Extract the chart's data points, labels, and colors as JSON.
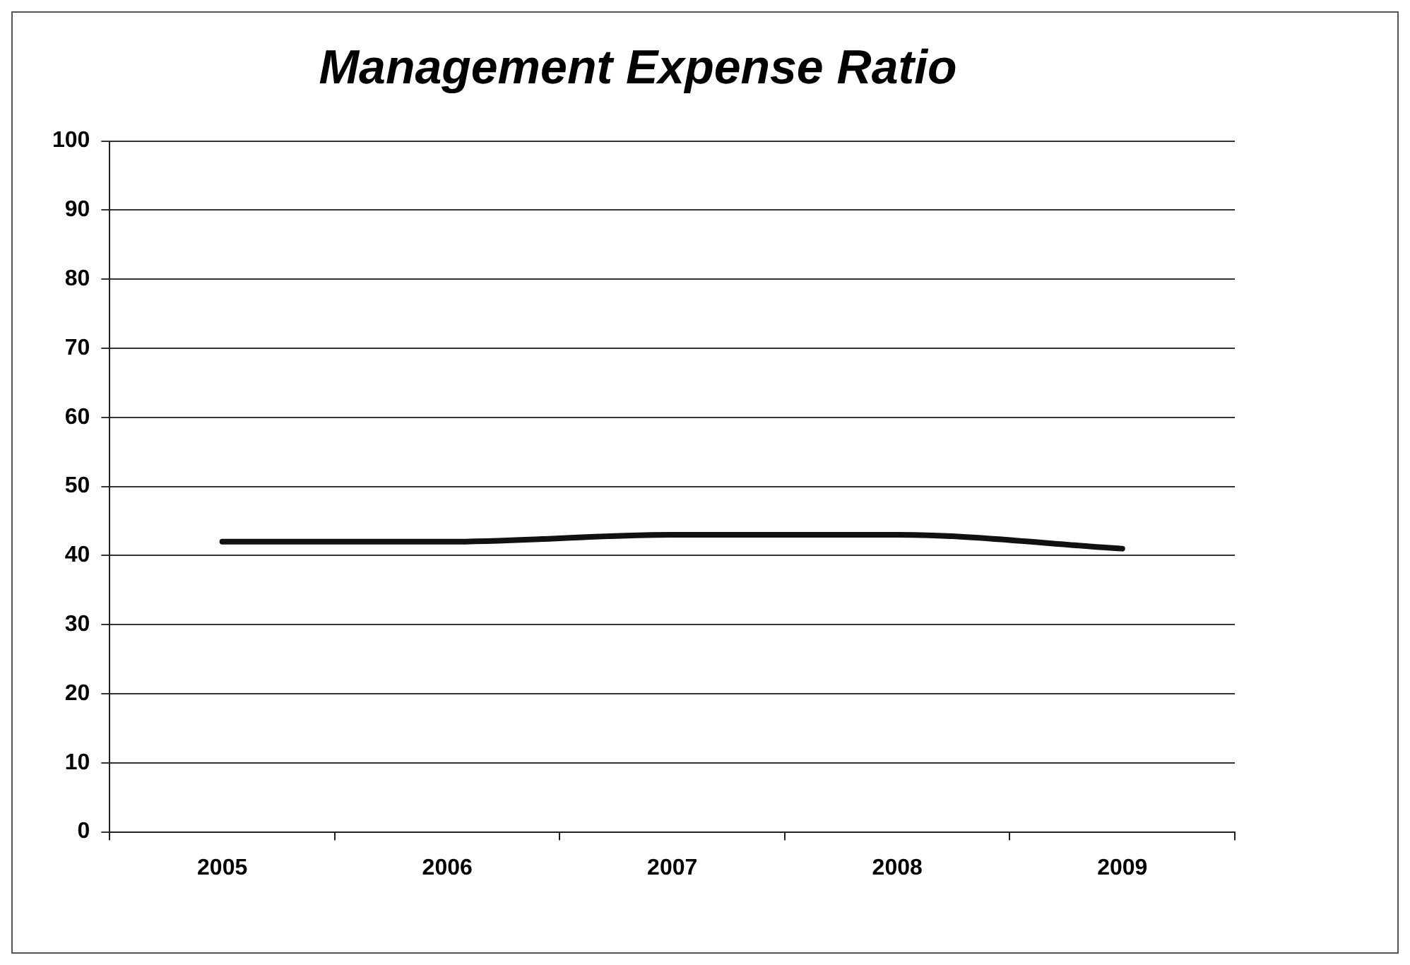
{
  "chart_data": {
    "type": "line",
    "title": "Management Expense Ratio",
    "categories": [
      "2005",
      "2006",
      "2007",
      "2008",
      "2009"
    ],
    "series": [
      {
        "color": "#111111",
        "values": [
          42,
          42,
          43,
          43,
          41
        ]
      }
    ],
    "ylim": [
      0,
      100
    ],
    "yticks": [
      0,
      10,
      20,
      30,
      40,
      50,
      60,
      70,
      80,
      90,
      100
    ],
    "grid": "y",
    "legend": false,
    "marker": "none",
    "line_style": "solid"
  }
}
